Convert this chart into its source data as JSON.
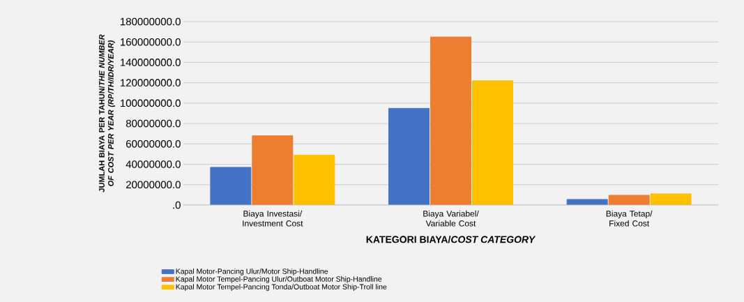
{
  "chart_data": {
    "type": "bar",
    "xlabel": "KATEGORI BIAYA/*COST CATEGORY*",
    "ylabel": "JUMLAH BIAYA PER TAHUN/*THE NUMBER OF COST PER YEAR (RP/TH/IDR/YEAR)*",
    "categories": [
      "Biaya Investasi/ Investment Cost",
      "Biaya Variabel/ Variable Cost",
      "Biaya Tetap/ Fixed Cost"
    ],
    "series": [
      {
        "name": "Kapal Motor-Pancing Ulur/Motor Ship-Handline",
        "color": "#4472c4",
        "values": [
          37000000,
          95000000,
          5500000
        ]
      },
      {
        "name": "Kapal Motor Tempel-Pancing Ulur/Outboat Motor Ship-Handline",
        "color": "#ed7d31",
        "values": [
          68000000,
          165000000,
          9600000
        ]
      },
      {
        "name": "Kapal Motor Tempel-Pancing Tonda/Outboat Motor Ship-Troll line",
        "color": "#ffc000",
        "values": [
          49000000,
          122000000,
          11000000
        ]
      }
    ],
    "ylim": [
      0,
      180000000
    ],
    "yticks": [
      {
        "value": 0,
        "label": ".0"
      },
      {
        "value": 20000000,
        "label": "20000000.0"
      },
      {
        "value": 40000000,
        "label": "40000000.0"
      },
      {
        "value": 60000000,
        "label": "60000000.0"
      },
      {
        "value": 80000000,
        "label": "80000000.0"
      },
      {
        "value": 100000000,
        "label": "100000000.0"
      },
      {
        "value": 120000000,
        "label": "120000000.0"
      },
      {
        "value": 140000000,
        "label": "140000000.0"
      },
      {
        "value": 160000000,
        "label": "160000000.0"
      },
      {
        "value": 180000000,
        "label": "180000000.0"
      }
    ],
    "grid": "y",
    "legend": "bottom"
  }
}
